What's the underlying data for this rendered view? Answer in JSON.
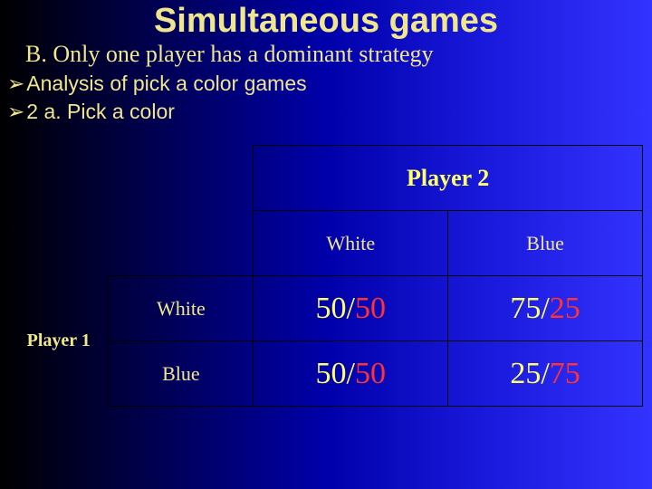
{
  "title": "Simultaneous games",
  "subtitle": "B. Only one player has a dominant strategy",
  "bullets": [
    "Analysis of pick a color games",
    "2 a.  Pick a color"
  ],
  "bullet_glyph": "➢",
  "table": {
    "player2_label": "Player 2",
    "player1_label": "Player 1",
    "col_headers": [
      "White",
      "Blue"
    ],
    "row_headers": [
      "White",
      "Blue"
    ],
    "cells": [
      [
        {
          "p1": "50",
          "p2": "50"
        },
        {
          "p1": "75",
          "p2": "25"
        }
      ],
      [
        {
          "p1": "50",
          "p2": "50"
        },
        {
          "p1": "25",
          "p2": "75"
        }
      ]
    ]
  },
  "colors": {
    "title": "#f0e68c",
    "text": "#f0e68c",
    "p1_payoff": "#ffff66",
    "p2_payoff": "#ff3333",
    "border": "#000000"
  },
  "fonts": {
    "title_size": 38,
    "subtitle_size": 26,
    "bullet_size": 23,
    "header_size": 22,
    "payoff_size": 34
  }
}
